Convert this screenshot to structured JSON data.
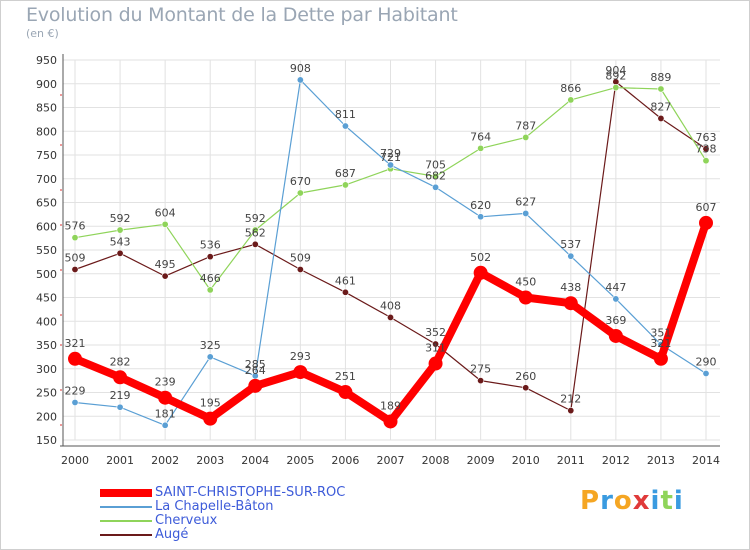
{
  "title": "Evolution du Montant de la Dette par Habitant",
  "subtitle": "(en €)",
  "logo": "Proxiti",
  "chart_data": {
    "type": "line",
    "title": "Evolution du Montant de la Dette par Habitant",
    "ylabel": "(en €)",
    "ylim": [
      150,
      950
    ],
    "yticks": [
      150,
      200,
      250,
      300,
      350,
      400,
      450,
      500,
      550,
      600,
      650,
      700,
      750,
      800,
      850,
      900,
      950
    ],
    "categories": [
      "2000",
      "2001",
      "2002",
      "2003",
      "2004",
      "2005",
      "2006",
      "2007",
      "2008",
      "2009",
      "2010",
      "2011",
      "2012",
      "2013",
      "2014"
    ],
    "grid": true,
    "legend_position": "bottom-left",
    "series": [
      {
        "name": "SAINT-CHRISTOPHE-SUR-ROC",
        "color": "#ff0000",
        "values": [
          321,
          282,
          239,
          195,
          264,
          293,
          251,
          189,
          311,
          502,
          450,
          438,
          369,
          321,
          607
        ]
      },
      {
        "name": "La Chapelle-Bâton",
        "color": "#5a9fd4",
        "values": [
          229,
          219,
          181,
          325,
          285,
          908,
          811,
          729,
          682,
          620,
          627,
          537,
          447,
          351,
          290
        ]
      },
      {
        "name": "Cherveux",
        "color": "#8fd45a",
        "values": [
          576,
          592,
          604,
          466,
          592,
          670,
          687,
          721,
          705,
          764,
          787,
          866,
          892,
          889,
          738
        ]
      },
      {
        "name": "Augé",
        "color": "#6b1a1a",
        "values": [
          509,
          543,
          495,
          536,
          562,
          509,
          461,
          408,
          352,
          275,
          260,
          212,
          904,
          827,
          763
        ]
      }
    ]
  },
  "labels": {
    "SAINT-CHRISTOPHE-SUR-ROC": [
      "321",
      "282",
      "239",
      "195",
      "264",
      "293",
      "251",
      "189",
      "311",
      "502",
      "450",
      "438",
      "369",
      "321",
      "607"
    ],
    "La Chapelle-Bâton": [
      "229",
      "219",
      "181",
      "325",
      "285",
      "908",
      "811",
      "729",
      "682",
      "620",
      "627",
      "537",
      "447",
      "351",
      "290"
    ],
    "Cherveux": [
      "576",
      "592",
      "604",
      "466",
      "592",
      "670",
      "687",
      "721",
      "705",
      "764",
      "787",
      "866",
      "892",
      "889",
      "738"
    ],
    "Augé": [
      "509",
      "543",
      "495",
      "536",
      "562",
      "509",
      "461",
      "408",
      "352",
      "275",
      "260",
      "212",
      "904",
      "827",
      "763"
    ]
  }
}
